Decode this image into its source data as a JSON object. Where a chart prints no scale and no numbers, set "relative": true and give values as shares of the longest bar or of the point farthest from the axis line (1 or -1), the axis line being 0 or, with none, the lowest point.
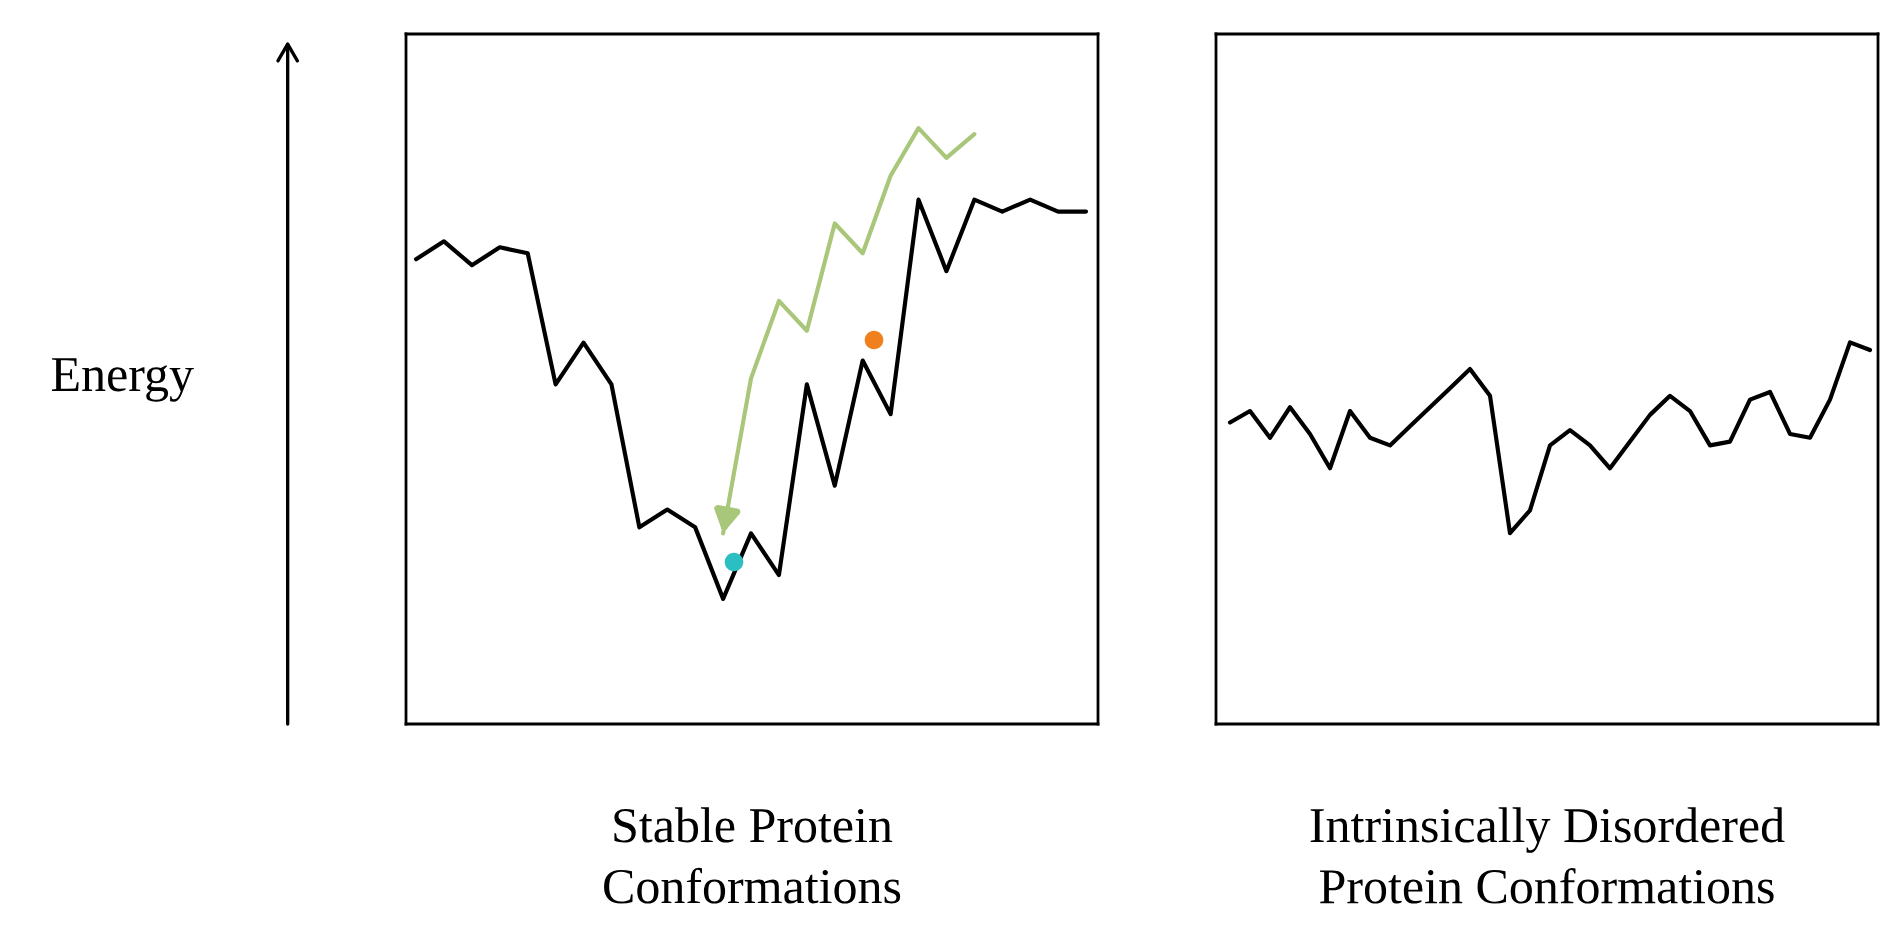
{
  "chart_data": [
    {
      "type": "line",
      "relative": true,
      "ylabel": "Energy",
      "xlabel": "Stable Protein\nConformations",
      "tick_labels": false,
      "categories": [
        null,
        null,
        null,
        null,
        null,
        null,
        null,
        null,
        null,
        null,
        null,
        null,
        null,
        null,
        null,
        null,
        null,
        null,
        null,
        null,
        null,
        null,
        null,
        null,
        null
      ],
      "series": [
        {
          "color": "#000000",
          "values": [
            0.78,
            0.81,
            0.77,
            0.8,
            0.79,
            0.57,
            0.64,
            0.57,
            0.33,
            0.36,
            0.33,
            0.21,
            0.32,
            0.25,
            0.57,
            0.4,
            0.61,
            0.52,
            0.88,
            0.76,
            0.88,
            0.86,
            0.88,
            0.86,
            0.86
          ]
        },
        {
          "color": "#a9c77a",
          "values": [
            null,
            null,
            null,
            null,
            null,
            null,
            null,
            null,
            null,
            null,
            null,
            0.32,
            0.58,
            0.71,
            0.66,
            0.84,
            0.79,
            0.92,
            1.0,
            0.95,
            0.99,
            null,
            null,
            null,
            null
          ]
        }
      ]
    },
    {
      "type": "line",
      "relative": true,
      "xlabel": "Intrinsically Disordered\nProtein Conformations",
      "tick_labels": false,
      "categories": [
        null,
        null,
        null,
        null,
        null,
        null,
        null,
        null,
        null,
        null,
        null,
        null,
        null,
        null,
        null,
        null,
        null,
        null,
        null,
        null,
        null,
        null,
        null,
        null,
        null,
        null,
        null,
        null,
        null,
        null,
        null,
        null,
        null
      ],
      "series": [
        {
          "color": "#000000",
          "values": [
            0.79,
            0.82,
            0.75,
            0.83,
            0.76,
            0.67,
            0.82,
            0.75,
            0.73,
            0.78,
            0.83,
            0.88,
            0.93,
            0.86,
            0.5,
            0.56,
            0.73,
            0.77,
            0.73,
            0.67,
            0.74,
            0.81,
            0.86,
            0.82,
            0.73,
            0.74,
            0.85,
            0.87,
            0.76,
            0.75,
            0.85,
            1.0,
            0.98
          ]
        }
      ]
    }
  ]
}
